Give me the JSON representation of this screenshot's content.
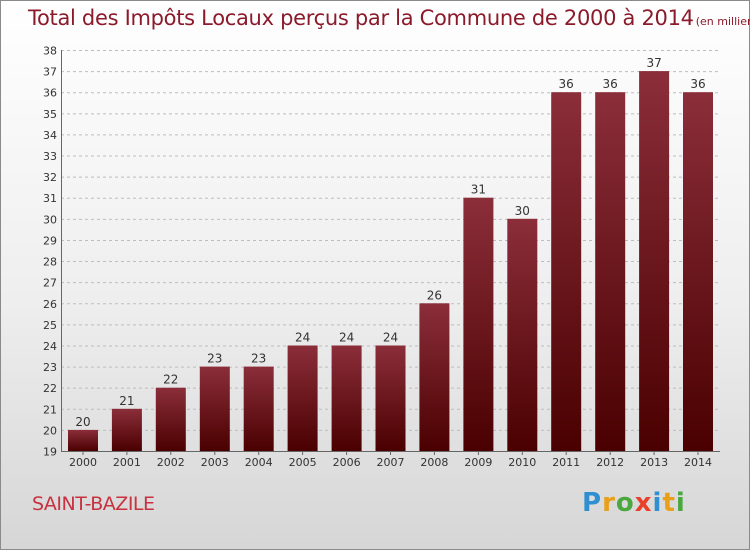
{
  "header": {
    "title": "Total des Impôts Locaux perçus par la Commune de 2000 à 2014",
    "subtitle": "(en milliers d'€)"
  },
  "footer": {
    "commune": "SAINT-BAZILE",
    "brand": "Proxiti"
  },
  "colors": {
    "bar_top": "#8b2e3a",
    "bar_bottom": "#4a0000",
    "title": "#8b1a2b",
    "commune": "#c8323f",
    "brand_letters": [
      "#2f8fd0",
      "#e8a019",
      "#4aa83f",
      "#e8412b",
      "#2f8fd0",
      "#e8a019",
      "#4aa83f"
    ]
  },
  "chart_data": {
    "type": "bar",
    "title": "Total des Impôts Locaux perçus par la Commune de 2000 à 2014",
    "subtitle": "(en milliers d'€)",
    "categories": [
      "2000",
      "2001",
      "2002",
      "2003",
      "2004",
      "2005",
      "2006",
      "2007",
      "2008",
      "2009",
      "2010",
      "2011",
      "2012",
      "2013",
      "2014"
    ],
    "values": [
      20,
      21,
      22,
      23,
      23,
      24,
      24,
      24,
      26,
      31,
      30,
      36,
      36,
      37,
      36
    ],
    "ylim": [
      19,
      38
    ],
    "yticks": [
      19,
      20,
      21,
      22,
      23,
      24,
      25,
      26,
      27,
      28,
      29,
      30,
      31,
      32,
      33,
      34,
      35,
      36,
      37,
      38
    ],
    "grid": true,
    "xlabel": "",
    "ylabel": ""
  }
}
